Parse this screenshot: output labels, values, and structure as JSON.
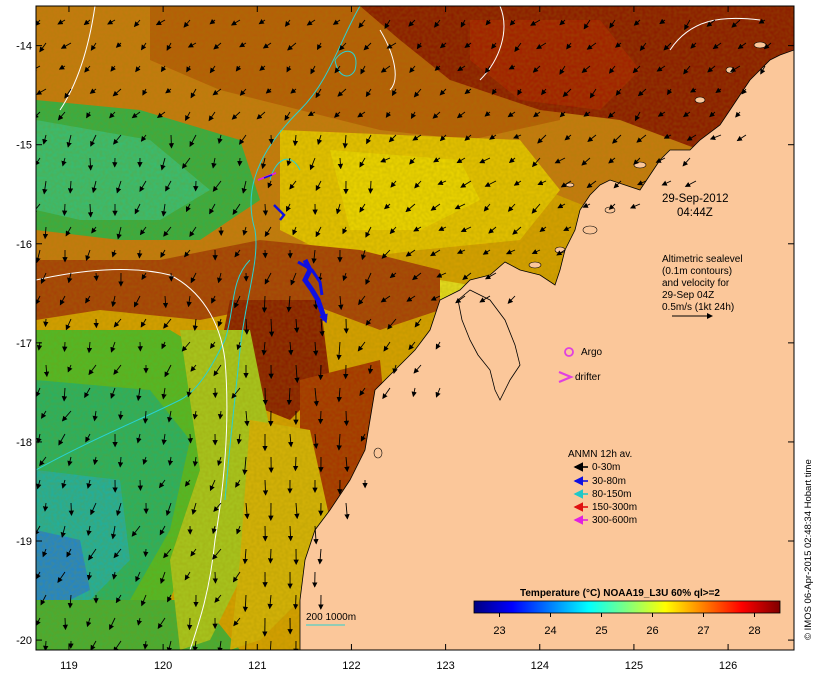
{
  "map": {
    "lon_range": [
      118.65,
      126.7
    ],
    "lat_range": [
      -20.1,
      -13.6
    ],
    "x_ticks": [
      "119",
      "120",
      "121",
      "122",
      "123",
      "124",
      "125",
      "126"
    ],
    "y_ticks": [
      "-14",
      "-15",
      "-16",
      "-17",
      "-18",
      "-19",
      "-20"
    ],
    "colors": {
      "land": "#fbc79a",
      "coast": "#000000",
      "contour_sealevel": "#ffffff",
      "isobath": "#2ad2d2",
      "frame": "#000000"
    }
  },
  "annotations": {
    "datetime_line1": "29-Sep-2012",
    "datetime_line2": "04:44Z",
    "altimetry": [
      "Altimetric sealevel",
      "(0.1m contours)",
      "and velocity for",
      "29-Sep 04Z",
      "0.5m/s (1kt 24h)"
    ],
    "isobath_label": "200  1000m",
    "credit": "© IMOS 06-Apr-2015 02:48:34 Hobart time"
  },
  "legend": {
    "argo_label": "Argo",
    "argo_color": "#e040e0",
    "drifter_label": "drifter",
    "drifter_color": "#e040e0",
    "anmn_title": "ANMN 12h av.",
    "anmn_items": [
      {
        "label": "0-30m",
        "color": "#000000"
      },
      {
        "label": "30-80m",
        "color": "#1010e0"
      },
      {
        "label": "80-150m",
        "color": "#20c8c8"
      },
      {
        "label": "150-300m",
        "color": "#e01010"
      },
      {
        "label": "300-600m",
        "color": "#e020e0"
      }
    ]
  },
  "colorbar": {
    "title": "Temperature (°C) NOAA19_L3U 60% ql>=2",
    "tick_labels": [
      "23",
      "24",
      "25",
      "26",
      "27",
      "28"
    ],
    "range": [
      22.5,
      28.5
    ],
    "stops": [
      "#00007f",
      "#0000ff",
      "#007fff",
      "#00ffff",
      "#7fff7f",
      "#ffff00",
      "#ff7f00",
      "#ff0000",
      "#7f0000"
    ]
  }
}
